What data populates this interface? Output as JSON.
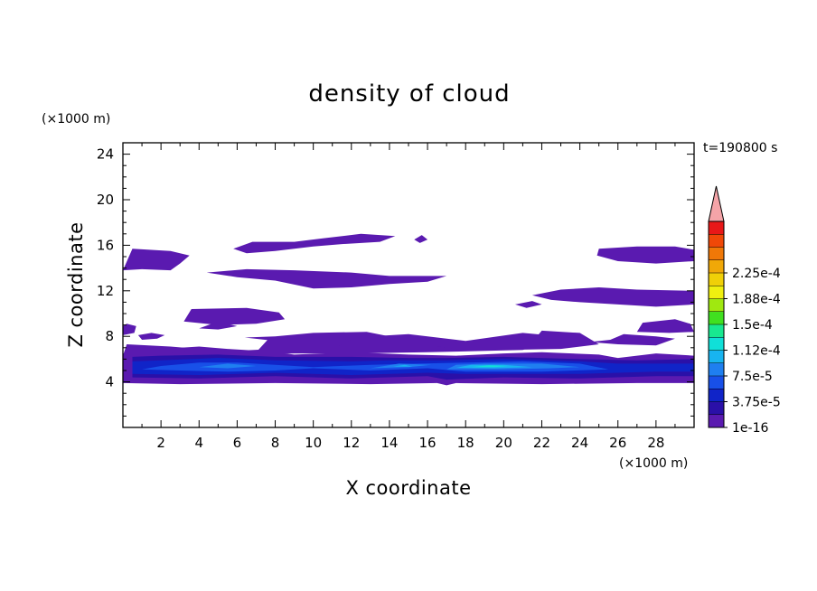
{
  "chart_data": {
    "type": "heatmap",
    "title": "density of cloud",
    "xlabel": "X coordinate",
    "ylabel": "Z coordinate",
    "x_unit": "(×1000 m)",
    "y_unit": "(×1000 m)",
    "time_label": "t=190800 s",
    "xlim": [
      0,
      30
    ],
    "ylim": [
      0,
      25
    ],
    "x_ticks": [
      2,
      4,
      6,
      8,
      10,
      12,
      14,
      16,
      18,
      20,
      22,
      24,
      26,
      28
    ],
    "y_ticks": [
      4,
      8,
      12,
      16,
      20,
      24
    ],
    "colorbar": {
      "levels": [
        "1e-16",
        "3.75e-5",
        "7.5e-5",
        "1.12e-4",
        "1.5e-4",
        "1.88e-4",
        "2.25e-4"
      ],
      "colors": [
        "#5a1ab0",
        "#2a10a8",
        "#1024c8",
        "#1850e8",
        "#1f7ff0",
        "#18b4f0",
        "#10e0d8",
        "#18e890",
        "#40e020",
        "#a0e810",
        "#f0f010",
        "#f0d008",
        "#f0a808",
        "#f07808",
        "#f04808",
        "#e81818"
      ],
      "over_color": "#f4a4a8"
    },
    "regions": [
      {
        "level": 1,
        "polygon": [
          [
            0,
            3.9
          ],
          [
            3,
            3.8
          ],
          [
            8,
            3.9
          ],
          [
            13,
            3.8
          ],
          [
            16.5,
            3.9
          ],
          [
            17,
            3.7
          ],
          [
            17.5,
            3.9
          ],
          [
            22,
            3.8
          ],
          [
            27,
            3.9
          ],
          [
            30,
            3.9
          ],
          [
            30,
            6.3
          ],
          [
            28,
            6.5
          ],
          [
            26,
            6.1
          ],
          [
            25,
            6.4
          ],
          [
            22,
            6.6
          ],
          [
            20,
            6.5
          ],
          [
            17.5,
            6.3
          ],
          [
            15,
            6.4
          ],
          [
            12,
            6.6
          ],
          [
            9,
            6.4
          ],
          [
            7.5,
            6.7
          ],
          [
            5.5,
            6.9
          ],
          [
            4,
            7.1
          ],
          [
            2,
            6.9
          ],
          [
            0.5,
            6.6
          ],
          [
            0,
            6.5
          ]
        ]
      },
      {
        "level": 1,
        "polygon": [
          [
            3,
            6.5
          ],
          [
            8,
            6.9
          ],
          [
            12,
            7.9
          ],
          [
            15,
            8.2
          ],
          [
            18,
            7.6
          ],
          [
            21,
            8.3
          ],
          [
            23,
            8.0
          ],
          [
            21,
            6.8
          ],
          [
            16,
            6.6
          ],
          [
            12,
            6.5
          ],
          [
            9,
            6.5
          ],
          [
            5,
            6.3
          ]
        ]
      },
      {
        "level": 1,
        "polygon": [
          [
            7,
            6.6
          ],
          [
            7.6,
            7.7
          ],
          [
            10,
            8.1
          ],
          [
            12,
            7.7
          ],
          [
            11,
            6.9
          ],
          [
            9,
            6.6
          ]
        ]
      },
      {
        "level": 1,
        "polygon": [
          [
            0,
            6.3
          ],
          [
            0.2,
            7.3
          ],
          [
            2.5,
            7.1
          ],
          [
            4,
            6.9
          ],
          [
            2,
            6.4
          ]
        ]
      },
      {
        "level": 1,
        "polygon": [
          [
            0,
            8.1
          ],
          [
            0.6,
            8.3
          ],
          [
            0.7,
            8.9
          ],
          [
            0.2,
            9.1
          ],
          [
            0,
            8.9
          ]
        ]
      },
      {
        "level": 1,
        "polygon": [
          [
            16.5,
            7.1
          ],
          [
            19,
            7.6
          ],
          [
            21.5,
            7.5
          ],
          [
            22,
            8.5
          ],
          [
            24,
            8.3
          ],
          [
            25,
            7.3
          ],
          [
            23,
            6.9
          ],
          [
            20,
            6.8
          ],
          [
            17.5,
            6.9
          ]
        ]
      },
      {
        "level": 1,
        "polygon": [
          [
            24.5,
            7.5
          ],
          [
            25.6,
            7.7
          ],
          [
            26.3,
            8.2
          ],
          [
            28,
            8.0
          ],
          [
            29,
            7.8
          ],
          [
            28,
            7.2
          ],
          [
            26,
            7.3
          ]
        ]
      },
      {
        "level": 1,
        "polygon": [
          [
            27,
            8.4
          ],
          [
            27.3,
            9.2
          ],
          [
            29,
            9.5
          ],
          [
            29.8,
            9.1
          ],
          [
            30,
            8.4
          ],
          [
            28.7,
            8.3
          ]
        ]
      },
      {
        "level": 1,
        "polygon": [
          [
            1,
            7.7
          ],
          [
            1.8,
            7.8
          ],
          [
            2.2,
            8.1
          ],
          [
            1.5,
            8.3
          ],
          [
            0.8,
            8.1
          ]
        ]
      },
      {
        "level": 1,
        "polygon": [
          [
            6.4,
            7.9
          ],
          [
            8,
            8.0
          ],
          [
            10,
            8.3
          ],
          [
            12.8,
            8.4
          ],
          [
            14,
            8.0
          ],
          [
            11,
            7.7
          ],
          [
            8,
            7.6
          ]
        ]
      },
      {
        "level": 1,
        "polygon": [
          [
            3.2,
            9.3
          ],
          [
            3.6,
            10.4
          ],
          [
            6.5,
            10.5
          ],
          [
            8.2,
            10.1
          ],
          [
            8.5,
            9.5
          ],
          [
            7,
            9.1
          ],
          [
            5,
            9.0
          ]
        ]
      },
      {
        "level": 1,
        "polygon": [
          [
            0,
            13.8
          ],
          [
            0.5,
            15.7
          ],
          [
            2.5,
            15.5
          ],
          [
            3.5,
            15.1
          ],
          [
            3,
            14.4
          ],
          [
            2.5,
            13.8
          ],
          [
            1,
            13.9
          ]
        ]
      },
      {
        "level": 1,
        "polygon": [
          [
            4.4,
            13.6
          ],
          [
            6.5,
            13.9
          ],
          [
            9,
            13.8
          ],
          [
            12,
            13.6
          ],
          [
            14,
            13.3
          ],
          [
            17,
            13.3
          ],
          [
            16,
            12.8
          ],
          [
            14,
            12.6
          ],
          [
            12,
            12.3
          ],
          [
            10,
            12.2
          ],
          [
            8,
            12.9
          ],
          [
            6,
            13.2
          ]
        ]
      },
      {
        "level": 1,
        "polygon": [
          [
            5.8,
            15.7
          ],
          [
            6.8,
            16.3
          ],
          [
            9,
            16.3
          ],
          [
            10.5,
            16.6
          ],
          [
            12.5,
            17.0
          ],
          [
            14.3,
            16.8
          ],
          [
            13.5,
            16.3
          ],
          [
            11.5,
            16.1
          ],
          [
            10,
            15.9
          ],
          [
            8,
            15.5
          ],
          [
            6.5,
            15.3
          ]
        ]
      },
      {
        "level": 1,
        "polygon": [
          [
            15.3,
            16.5
          ],
          [
            15.7,
            16.9
          ],
          [
            16.0,
            16.5
          ],
          [
            15.6,
            16.2
          ]
        ]
      },
      {
        "level": 1,
        "polygon": [
          [
            24.9,
            15.1
          ],
          [
            25,
            15.7
          ],
          [
            27,
            15.9
          ],
          [
            29,
            15.9
          ],
          [
            30,
            15.6
          ],
          [
            30,
            14.6
          ],
          [
            28,
            14.4
          ],
          [
            26,
            14.6
          ]
        ]
      },
      {
        "level": 1,
        "polygon": [
          [
            21.5,
            11.6
          ],
          [
            23,
            12.1
          ],
          [
            25,
            12.3
          ],
          [
            27,
            12.1
          ],
          [
            30,
            12.0
          ],
          [
            30,
            10.8
          ],
          [
            28,
            10.6
          ],
          [
            26,
            10.8
          ],
          [
            24,
            11.0
          ],
          [
            22.5,
            11.2
          ]
        ]
      },
      {
        "level": 1,
        "polygon": [
          [
            20.6,
            10.8
          ],
          [
            21.5,
            11.1
          ],
          [
            22,
            10.8
          ],
          [
            21.2,
            10.5
          ]
        ]
      },
      {
        "level": 1,
        "polygon": [
          [
            4,
            8.7
          ],
          [
            5,
            9.3
          ],
          [
            6,
            8.9
          ],
          [
            5,
            8.6
          ]
        ]
      },
      {
        "level": 2,
        "polygon": [
          [
            0.5,
            4.4
          ],
          [
            4,
            4.3
          ],
          [
            8,
            4.5
          ],
          [
            12,
            4.3
          ],
          [
            16,
            4.5
          ],
          [
            17,
            4.2
          ],
          [
            20,
            4.4
          ],
          [
            24,
            4.3
          ],
          [
            28,
            4.5
          ],
          [
            30,
            4.5
          ],
          [
            30,
            6.0
          ],
          [
            27,
            5.9
          ],
          [
            24,
            6.0
          ],
          [
            20,
            6.2
          ],
          [
            17,
            6.1
          ],
          [
            15,
            6.1
          ],
          [
            12,
            6.2
          ],
          [
            8,
            6.2
          ],
          [
            5,
            6.4
          ],
          [
            2,
            6.3
          ],
          [
            0.5,
            6.2
          ]
        ]
      },
      {
        "level": 3,
        "polygon": [
          [
            0.5,
            4.7
          ],
          [
            4,
            4.6
          ],
          [
            8,
            4.8
          ],
          [
            12,
            4.6
          ],
          [
            16,
            4.8
          ],
          [
            18,
            4.7
          ],
          [
            24,
            4.7
          ],
          [
            28,
            4.9
          ],
          [
            30,
            4.9
          ],
          [
            30,
            5.6
          ],
          [
            26,
            5.6
          ],
          [
            24,
            5.8
          ],
          [
            20,
            6.0
          ],
          [
            17,
            5.9
          ],
          [
            14,
            5.9
          ],
          [
            12,
            5.8
          ],
          [
            8,
            5.9
          ],
          [
            5,
            6.1
          ],
          [
            2,
            5.9
          ],
          [
            0.5,
            5.8
          ]
        ]
      },
      {
        "level": 4,
        "polygon": [
          [
            1,
            5.1
          ],
          [
            3,
            5.0
          ],
          [
            5.5,
            4.9
          ],
          [
            8,
            5.0
          ],
          [
            10,
            5.2
          ],
          [
            13,
            5.0
          ],
          [
            16,
            5.2
          ],
          [
            18,
            4.9
          ],
          [
            22,
            4.9
          ],
          [
            25.5,
            5.1
          ],
          [
            24,
            5.6
          ],
          [
            21,
            5.8
          ],
          [
            18,
            5.7
          ],
          [
            15.5,
            5.6
          ],
          [
            13,
            5.5
          ],
          [
            10,
            5.3
          ],
          [
            8,
            5.5
          ],
          [
            6,
            5.7
          ],
          [
            4,
            5.7
          ],
          [
            2,
            5.4
          ]
        ]
      },
      {
        "level": 5,
        "polygon": [
          [
            4,
            5.3
          ],
          [
            5.5,
            5.2
          ],
          [
            7,
            5.4
          ],
          [
            5.5,
            5.6
          ]
        ]
      },
      {
        "level": 5,
        "polygon": [
          [
            13,
            5.2
          ],
          [
            15,
            5.3
          ],
          [
            16.2,
            5.5
          ],
          [
            14.5,
            5.6
          ]
        ]
      },
      {
        "level": 5,
        "polygon": [
          [
            17,
            5.1
          ],
          [
            20,
            5.1
          ],
          [
            22.5,
            5.2
          ],
          [
            24,
            5.3
          ],
          [
            22,
            5.6
          ],
          [
            19,
            5.6
          ],
          [
            17.5,
            5.5
          ]
        ]
      },
      {
        "level": 6,
        "polygon": [
          [
            17.5,
            5.25
          ],
          [
            19.5,
            5.2
          ],
          [
            21.5,
            5.3
          ],
          [
            20,
            5.5
          ],
          [
            18.3,
            5.5
          ]
        ]
      },
      {
        "level": 6,
        "polygon": [
          [
            14.2,
            5.35
          ],
          [
            15.2,
            5.35
          ],
          [
            14.8,
            5.5
          ]
        ]
      },
      {
        "level": 7,
        "polygon": [
          [
            18.3,
            5.3
          ],
          [
            19.5,
            5.3
          ],
          [
            20.2,
            5.4
          ],
          [
            19.2,
            5.45
          ]
        ]
      }
    ]
  }
}
